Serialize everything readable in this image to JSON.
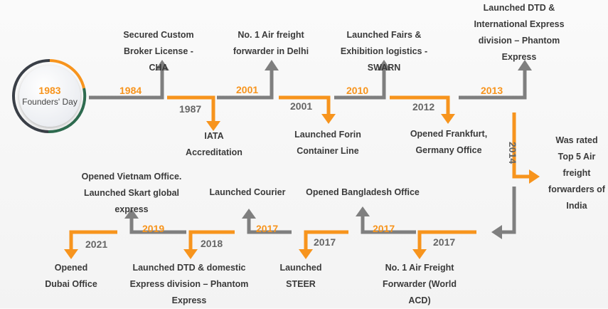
{
  "founders": {
    "year": "1983",
    "label": "Founders' Day"
  },
  "milestones": [
    {
      "year": "1984",
      "text": "Secured Custom Broker License - CHA"
    },
    {
      "year": "1987",
      "text": "IATA Accreditation"
    },
    {
      "year": "2001",
      "text": "No. 1 Air freight forwarder in Delhi"
    },
    {
      "year": "2001",
      "text": "Launched Forin Container Line"
    },
    {
      "year": "2010",
      "text": "Launched Fairs & Exhibition logistics - SWARN"
    },
    {
      "year": "2012",
      "text": "Opened Frankfurt, Germany Office"
    },
    {
      "year": "2013",
      "text": "Launched DTD & International Express division – Phantom Express"
    },
    {
      "year": "2014",
      "text": "Was rated Top 5 Air freight forwarders of India"
    },
    {
      "year": "2017",
      "text": "No. 1 Air Freight Forwarder (World ACD)"
    },
    {
      "year": "2017",
      "text": "Opened Bangladesh Office"
    },
    {
      "year": "2017",
      "text": "Launched STEER"
    },
    {
      "year": "2017",
      "text": "Launched Courier"
    },
    {
      "year": "2018",
      "text": "Launched DTD & domestic Express division – Phantom Express"
    },
    {
      "year": "2019",
      "text": "Opened Vietnam Office. Launched Skart global express"
    },
    {
      "year": "2021",
      "text": "Opened Dubai Office"
    }
  ],
  "colors": {
    "orange": "#f7941d",
    "gray": "#7f7f7f",
    "ring_green": "#2e6b4f",
    "ring_dark": "#3a3f47"
  }
}
